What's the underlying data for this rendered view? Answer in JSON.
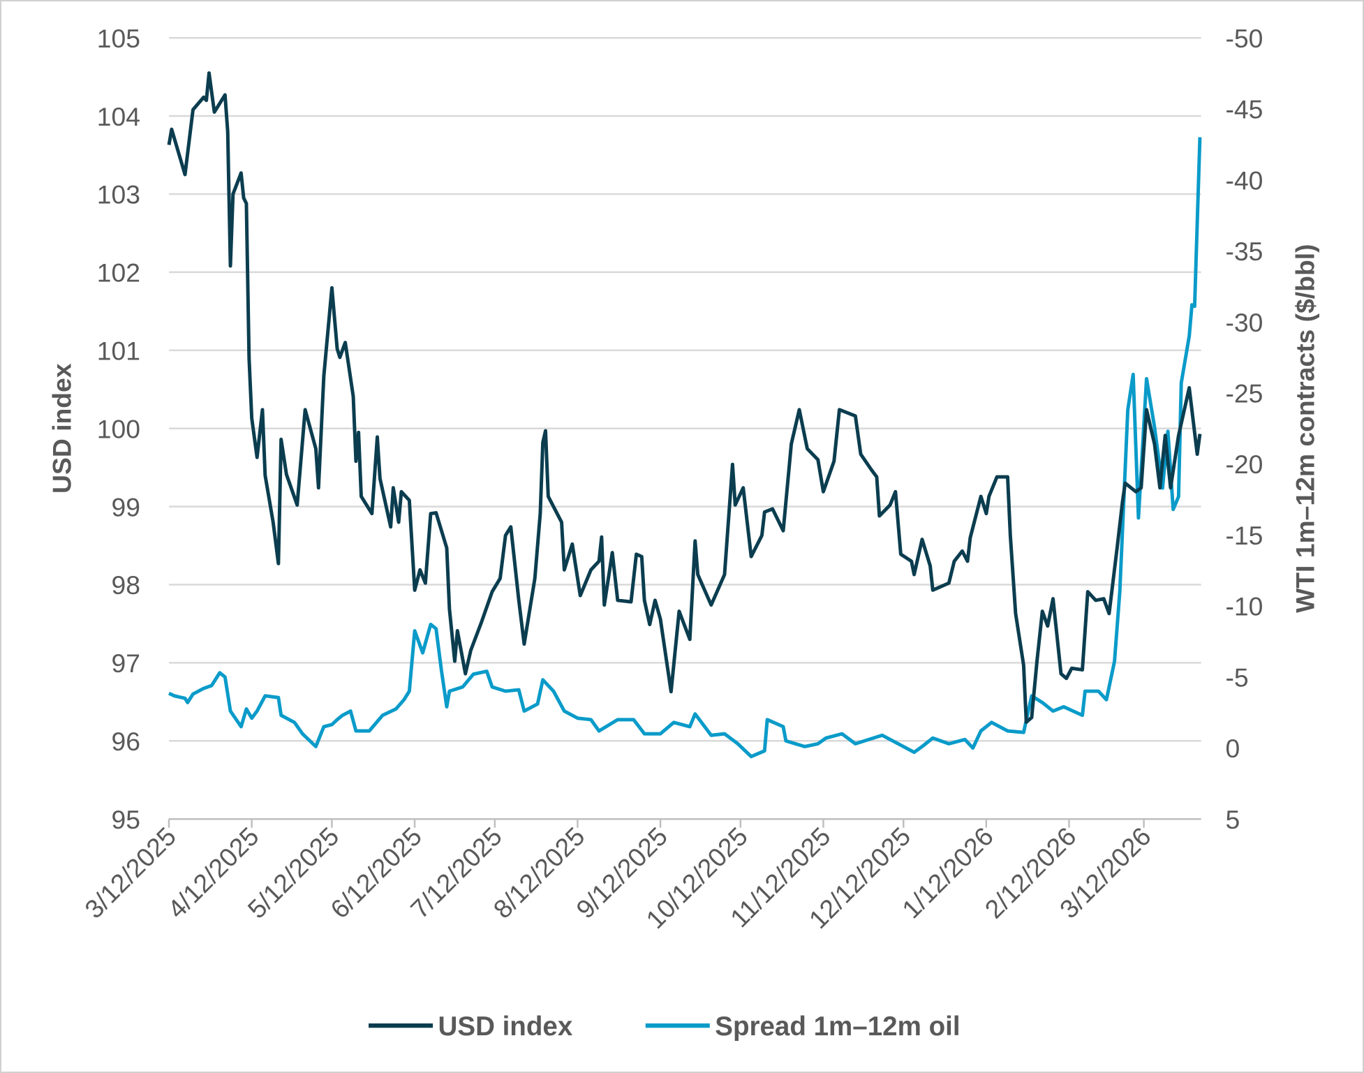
{
  "chart_data": {
    "type": "line",
    "title": "",
    "xlabel": "",
    "ylabel": "USD index",
    "y2label": "WTI 1m–12m contracts ($/bbl)",
    "ylim": [
      95,
      105
    ],
    "y2lim": [
      5,
      -50
    ],
    "y2_inverted": true,
    "yticks": [
      "95",
      "96",
      "97",
      "98",
      "99",
      "100",
      "101",
      "102",
      "103",
      "104",
      "105"
    ],
    "y2ticks": [
      "5",
      "0",
      "-5",
      "-10",
      "-15",
      "-20",
      "-25",
      "-30",
      "-35",
      "-40",
      "-45",
      "-50"
    ],
    "xlim": [
      "2025-03-12",
      "2026-04-02"
    ],
    "xticks": [
      "3/12/2025",
      "4/12/2025",
      "5/12/2025",
      "6/12/2025",
      "7/12/2025",
      "8/12/2025",
      "9/12/2025",
      "10/12/2025",
      "11/12/2025",
      "12/12/2025",
      "1/12/2026",
      "2/12/2026",
      "3/12/2026"
    ],
    "grid": "horizontal",
    "legend_position": "bottom",
    "series": [
      {
        "name": "USD index",
        "axis": "left",
        "color": "#0b3d4f",
        "points": [
          [
            "2025-03-12",
            103.63
          ],
          [
            "2025-03-13",
            103.83
          ],
          [
            "2025-03-18",
            103.25
          ],
          [
            "2025-03-21",
            104.08
          ],
          [
            "2025-03-25",
            104.24
          ],
          [
            "2025-03-26",
            104.2
          ],
          [
            "2025-03-27",
            104.55
          ],
          [
            "2025-03-29",
            104.05
          ],
          [
            "2025-04-02",
            104.27
          ],
          [
            "2025-04-03",
            103.8
          ],
          [
            "2025-04-04",
            102.08
          ],
          [
            "2025-04-05",
            103.0
          ],
          [
            "2025-04-08",
            103.27
          ],
          [
            "2025-04-09",
            102.95
          ],
          [
            "2025-04-10",
            102.88
          ],
          [
            "2025-04-11",
            100.9
          ],
          [
            "2025-04-12",
            100.13
          ],
          [
            "2025-04-14",
            99.63
          ],
          [
            "2025-04-16",
            100.24
          ],
          [
            "2025-04-17",
            99.4
          ],
          [
            "2025-04-20",
            98.8
          ],
          [
            "2025-04-22",
            98.27
          ],
          [
            "2025-04-23",
            99.86
          ],
          [
            "2025-04-25",
            99.41
          ],
          [
            "2025-04-29",
            99.02
          ],
          [
            "2025-05-02",
            100.24
          ],
          [
            "2025-05-06",
            99.74
          ],
          [
            "2025-05-07",
            99.24
          ],
          [
            "2025-05-09",
            100.67
          ],
          [
            "2025-05-12",
            101.8
          ],
          [
            "2025-05-14",
            101.02
          ],
          [
            "2025-05-15",
            100.91
          ],
          [
            "2025-05-17",
            101.1
          ],
          [
            "2025-05-20",
            100.41
          ],
          [
            "2025-05-21",
            99.58
          ],
          [
            "2025-05-22",
            99.95
          ],
          [
            "2025-05-23",
            99.13
          ],
          [
            "2025-05-27",
            98.91
          ],
          [
            "2025-05-29",
            99.89
          ],
          [
            "2025-05-30",
            99.36
          ],
          [
            "2025-06-03",
            98.74
          ],
          [
            "2025-06-04",
            99.24
          ],
          [
            "2025-06-06",
            98.8
          ],
          [
            "2025-06-07",
            99.19
          ],
          [
            "2025-06-10",
            99.08
          ],
          [
            "2025-06-12",
            97.93
          ],
          [
            "2025-06-14",
            98.19
          ],
          [
            "2025-06-16",
            98.02
          ],
          [
            "2025-06-18",
            98.91
          ],
          [
            "2025-06-20",
            98.92
          ],
          [
            "2025-06-24",
            98.47
          ],
          [
            "2025-06-25",
            97.69
          ],
          [
            "2025-06-27",
            97.02
          ],
          [
            "2025-06-28",
            97.41
          ],
          [
            "2025-07-01",
            96.86
          ],
          [
            "2025-07-03",
            97.16
          ],
          [
            "2025-07-07",
            97.52
          ],
          [
            "2025-07-11",
            97.91
          ],
          [
            "2025-07-14",
            98.08
          ],
          [
            "2025-07-16",
            98.63
          ],
          [
            "2025-07-18",
            98.74
          ],
          [
            "2025-07-21",
            97.8
          ],
          [
            "2025-07-23",
            97.24
          ],
          [
            "2025-07-27",
            98.08
          ],
          [
            "2025-07-29",
            98.91
          ],
          [
            "2025-07-30",
            99.82
          ],
          [
            "2025-07-31",
            99.97
          ],
          [
            "2025-08-01",
            99.13
          ],
          [
            "2025-08-06",
            98.8
          ],
          [
            "2025-08-07",
            98.19
          ],
          [
            "2025-08-10",
            98.52
          ],
          [
            "2025-08-13",
            97.86
          ],
          [
            "2025-08-17",
            98.19
          ],
          [
            "2025-08-20",
            98.3
          ],
          [
            "2025-08-21",
            98.61
          ],
          [
            "2025-08-22",
            97.74
          ],
          [
            "2025-08-25",
            98.41
          ],
          [
            "2025-08-27",
            97.8
          ],
          [
            "2025-09-01",
            97.78
          ],
          [
            "2025-09-03",
            98.39
          ],
          [
            "2025-09-05",
            98.36
          ],
          [
            "2025-09-06",
            97.8
          ],
          [
            "2025-09-08",
            97.49
          ],
          [
            "2025-09-10",
            97.8
          ],
          [
            "2025-09-12",
            97.56
          ],
          [
            "2025-09-16",
            96.63
          ],
          [
            "2025-09-19",
            97.66
          ],
          [
            "2025-09-23",
            97.3
          ],
          [
            "2025-09-25",
            98.56
          ],
          [
            "2025-09-26",
            98.13
          ],
          [
            "2025-10-01",
            97.74
          ],
          [
            "2025-10-06",
            98.13
          ],
          [
            "2025-10-09",
            99.54
          ],
          [
            "2025-10-10",
            99.02
          ],
          [
            "2025-10-13",
            99.24
          ],
          [
            "2025-10-16",
            98.36
          ],
          [
            "2025-10-20",
            98.63
          ],
          [
            "2025-10-21",
            98.93
          ],
          [
            "2025-10-24",
            98.97
          ],
          [
            "2025-10-28",
            98.69
          ],
          [
            "2025-10-31",
            99.8
          ],
          [
            "2025-11-03",
            100.24
          ],
          [
            "2025-11-06",
            99.74
          ],
          [
            "2025-11-10",
            99.6
          ],
          [
            "2025-11-12",
            99.19
          ],
          [
            "2025-11-16",
            99.58
          ],
          [
            "2025-11-18",
            100.24
          ],
          [
            "2025-11-24",
            100.16
          ],
          [
            "2025-11-26",
            99.67
          ],
          [
            "2025-11-30",
            99.47
          ],
          [
            "2025-12-02",
            99.38
          ],
          [
            "2025-12-03",
            98.88
          ],
          [
            "2025-12-07",
            99.02
          ],
          [
            "2025-12-09",
            99.19
          ],
          [
            "2025-12-11",
            98.39
          ],
          [
            "2025-12-15",
            98.3
          ],
          [
            "2025-12-16",
            98.13
          ],
          [
            "2025-12-19",
            98.58
          ],
          [
            "2025-12-22",
            98.24
          ],
          [
            "2025-12-23",
            97.93
          ],
          [
            "2025-12-29",
            98.02
          ],
          [
            "2025-12-31",
            98.3
          ],
          [
            "2026-01-03",
            98.43
          ],
          [
            "2026-01-05",
            98.3
          ],
          [
            "2026-01-06",
            98.6
          ],
          [
            "2026-01-10",
            99.13
          ],
          [
            "2026-01-12",
            98.91
          ],
          [
            "2026-01-13",
            99.13
          ],
          [
            "2026-01-16",
            99.38
          ],
          [
            "2026-01-20",
            99.38
          ],
          [
            "2026-01-21",
            98.63
          ],
          [
            "2026-01-23",
            97.63
          ],
          [
            "2026-01-26",
            96.97
          ],
          [
            "2026-01-27",
            96.24
          ],
          [
            "2026-01-29",
            96.3
          ],
          [
            "2026-01-31",
            97.02
          ],
          [
            "2026-02-02",
            97.66
          ],
          [
            "2026-02-04",
            97.47
          ],
          [
            "2026-02-06",
            97.82
          ],
          [
            "2026-02-09",
            96.86
          ],
          [
            "2026-02-11",
            96.8
          ],
          [
            "2026-02-13",
            96.93
          ],
          [
            "2026-02-17",
            96.91
          ],
          [
            "2026-02-19",
            97.91
          ],
          [
            "2026-02-22",
            97.8
          ],
          [
            "2026-02-25",
            97.82
          ],
          [
            "2026-02-27",
            97.63
          ],
          [
            "2026-03-02",
            98.47
          ],
          [
            "2026-03-04",
            99.06
          ],
          [
            "2026-03-05",
            99.3
          ],
          [
            "2026-03-09",
            99.19
          ],
          [
            "2026-03-11",
            99.24
          ],
          [
            "2026-03-13",
            100.24
          ],
          [
            "2026-03-16",
            99.8
          ],
          [
            "2026-03-18",
            99.24
          ],
          [
            "2026-03-20",
            99.91
          ],
          [
            "2026-03-22",
            99.24
          ],
          [
            "2026-03-25",
            99.91
          ],
          [
            "2026-03-29",
            100.52
          ],
          [
            "2026-04-01",
            99.67
          ],
          [
            "2026-04-02",
            99.93
          ]
        ]
      },
      {
        "name": "Spread 1m–12m oil",
        "axis": "right",
        "color": "#0a9bc9",
        "points": [
          [
            "2025-03-12",
            -3.85
          ],
          [
            "2025-03-14",
            -3.67
          ],
          [
            "2025-03-18",
            -3.5
          ],
          [
            "2025-03-19",
            -3.2
          ],
          [
            "2025-03-21",
            -3.8
          ],
          [
            "2025-03-25",
            -4.2
          ],
          [
            "2025-03-28",
            -4.4
          ],
          [
            "2025-03-31",
            -5.3
          ],
          [
            "2025-04-02",
            -5.0
          ],
          [
            "2025-04-04",
            -2.6
          ],
          [
            "2025-04-08",
            -1.5
          ],
          [
            "2025-04-10",
            -2.75
          ],
          [
            "2025-04-12",
            -2.1
          ],
          [
            "2025-04-14",
            -2.6
          ],
          [
            "2025-04-17",
            -3.67
          ],
          [
            "2025-04-22",
            -3.55
          ],
          [
            "2025-04-23",
            -2.3
          ],
          [
            "2025-04-28",
            -1.8
          ],
          [
            "2025-05-01",
            -1.0
          ],
          [
            "2025-05-06",
            -0.1
          ],
          [
            "2025-05-09",
            -1.5
          ],
          [
            "2025-05-12",
            -1.65
          ],
          [
            "2025-05-14",
            -2.0
          ],
          [
            "2025-05-16",
            -2.3
          ],
          [
            "2025-05-19",
            -2.6
          ],
          [
            "2025-05-21",
            -1.2
          ],
          [
            "2025-05-26",
            -1.2
          ],
          [
            "2025-05-31",
            -2.3
          ],
          [
            "2025-06-05",
            -2.75
          ],
          [
            "2025-06-08",
            -3.4
          ],
          [
            "2025-06-10",
            -4.0
          ],
          [
            "2025-06-12",
            -8.25
          ],
          [
            "2025-06-15",
            -6.7
          ],
          [
            "2025-06-18",
            -8.7
          ],
          [
            "2025-06-20",
            -8.4
          ],
          [
            "2025-06-22",
            -5.5
          ],
          [
            "2025-06-24",
            -2.9
          ],
          [
            "2025-06-25",
            -4.0
          ],
          [
            "2025-06-30",
            -4.3
          ],
          [
            "2025-07-04",
            -5.2
          ],
          [
            "2025-07-09",
            -5.4
          ],
          [
            "2025-07-11",
            -4.3
          ],
          [
            "2025-07-16",
            -4.0
          ],
          [
            "2025-07-21",
            -4.1
          ],
          [
            "2025-07-23",
            -2.6
          ],
          [
            "2025-07-28",
            -3.1
          ],
          [
            "2025-07-30",
            -4.8
          ],
          [
            "2025-08-03",
            -4.0
          ],
          [
            "2025-08-07",
            -2.6
          ],
          [
            "2025-08-12",
            -2.1
          ],
          [
            "2025-08-17",
            -2.0
          ],
          [
            "2025-08-20",
            -1.2
          ],
          [
            "2025-08-27",
            -2.0
          ],
          [
            "2025-09-02",
            -2.0
          ],
          [
            "2025-09-06",
            -1.0
          ],
          [
            "2025-09-12",
            -1.0
          ],
          [
            "2025-09-17",
            -1.8
          ],
          [
            "2025-09-23",
            -1.5
          ],
          [
            "2025-09-25",
            -2.4
          ],
          [
            "2025-10-01",
            -0.9
          ],
          [
            "2025-10-06",
            -1.0
          ],
          [
            "2025-10-11",
            -0.3
          ],
          [
            "2025-10-16",
            0.6
          ],
          [
            "2025-10-21",
            0.2
          ],
          [
            "2025-10-22",
            -2.0
          ],
          [
            "2025-10-28",
            -1.5
          ],
          [
            "2025-10-29",
            -0.5
          ],
          [
            "2025-11-05",
            -0.1
          ],
          [
            "2025-11-10",
            -0.3
          ],
          [
            "2025-11-13",
            -0.7
          ],
          [
            "2025-11-19",
            -1.0
          ],
          [
            "2025-11-24",
            -0.3
          ],
          [
            "2025-11-29",
            -0.6
          ],
          [
            "2025-12-04",
            -0.9
          ],
          [
            "2025-12-09",
            -0.4
          ],
          [
            "2025-12-16",
            0.3
          ],
          [
            "2025-12-19",
            -0.1
          ],
          [
            "2025-12-23",
            -0.7
          ],
          [
            "2025-12-29",
            -0.3
          ],
          [
            "2026-01-04",
            -0.6
          ],
          [
            "2026-01-07",
            0.0
          ],
          [
            "2026-01-10",
            -1.2
          ],
          [
            "2026-01-14",
            -1.8
          ],
          [
            "2026-01-20",
            -1.2
          ],
          [
            "2026-01-26",
            -1.1
          ],
          [
            "2026-01-29",
            -3.67
          ],
          [
            "2026-02-02",
            -3.2
          ],
          [
            "2026-02-06",
            -2.6
          ],
          [
            "2026-02-10",
            -2.9
          ],
          [
            "2026-02-17",
            -2.3
          ],
          [
            "2026-02-18",
            -4.0
          ],
          [
            "2026-02-23",
            -4.0
          ],
          [
            "2026-02-26",
            -3.4
          ],
          [
            "2026-03-01",
            -6.1
          ],
          [
            "2026-03-03",
            -11.0
          ],
          [
            "2026-03-06",
            -23.8
          ],
          [
            "2026-03-08",
            -26.3
          ],
          [
            "2026-03-10",
            -16.2
          ],
          [
            "2026-03-13",
            -26.0
          ],
          [
            "2026-03-16",
            -22.6
          ],
          [
            "2026-03-19",
            -18.3
          ],
          [
            "2026-03-21",
            -22.3
          ],
          [
            "2026-03-23",
            -16.8
          ],
          [
            "2026-03-25",
            -17.7
          ],
          [
            "2026-03-26",
            -25.7
          ],
          [
            "2026-03-29",
            -29.0
          ],
          [
            "2026-03-30",
            -31.2
          ],
          [
            "2026-03-31",
            -31.1
          ],
          [
            "2026-04-02",
            -43.0
          ]
        ]
      }
    ]
  },
  "legend": {
    "usd_label": "USD index",
    "spread_label": "Spread 1m–12m oil"
  }
}
